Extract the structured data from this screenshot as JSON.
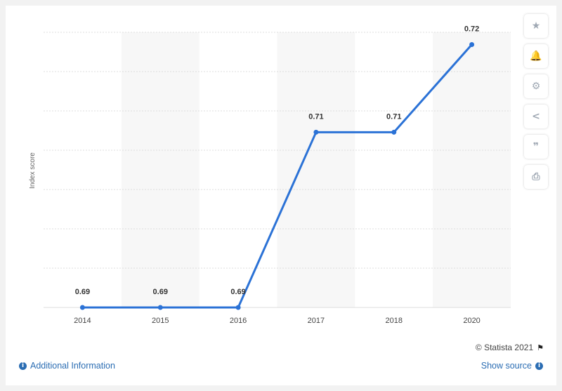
{
  "chart_data": {
    "type": "line",
    "categories": [
      "2014",
      "2015",
      "2016",
      "2017",
      "2018",
      "2020"
    ],
    "values": [
      0.69,
      0.69,
      0.69,
      0.71,
      0.71,
      0.72
    ],
    "data_labels": [
      "0.69",
      "0.69",
      "0.69",
      "0.71",
      "0.71",
      "0.72"
    ],
    "title": "",
    "xlabel": "",
    "ylabel": "Index score",
    "ylim": [
      0.69,
      0.7214
    ],
    "grid": true,
    "legend": "none",
    "line_color": "#2b72d6",
    "label_color": "#333333"
  },
  "credit": {
    "text": "© Statista 2021",
    "icon": "flag-icon"
  },
  "footer": {
    "additional_info": "Additional Information",
    "show_source": "Show source",
    "info_icon": "i",
    "link_color": "#2b6db3"
  },
  "sidebar": {
    "icons": [
      {
        "name": "star-icon",
        "glyph": "★"
      },
      {
        "name": "bell-icon",
        "glyph": "🔔"
      },
      {
        "name": "gear-icon",
        "glyph": "⚙"
      },
      {
        "name": "share-icon",
        "glyph": "<"
      },
      {
        "name": "quote-icon",
        "glyph": "❞"
      },
      {
        "name": "print-icon",
        "glyph": "⎙"
      }
    ]
  }
}
